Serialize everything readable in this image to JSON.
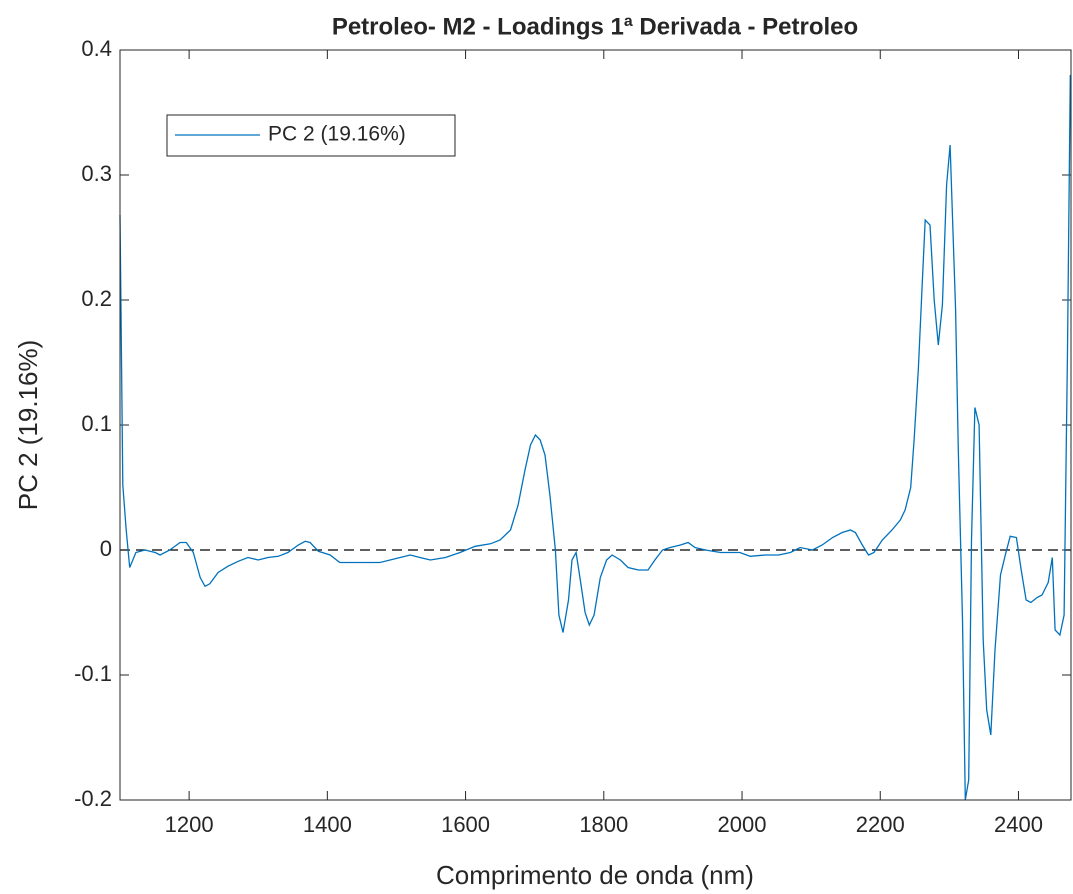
{
  "chart_data": {
    "type": "line",
    "title": "Petroleo- M2 - Loadings 1ª Derivada - Petroleo",
    "xlabel": "Comprimento de onda (nm)",
    "ylabel": "PC 2 (19.16%)",
    "x": [
      1100,
      1104,
      1109,
      1114,
      1123,
      1136,
      1151,
      1158,
      1172,
      1187,
      1196,
      1206,
      1216,
      1223,
      1230,
      1242,
      1256,
      1271,
      1285,
      1300,
      1314,
      1329,
      1343,
      1358,
      1368,
      1375,
      1387,
      1404,
      1418,
      1440,
      1462,
      1476,
      1498,
      1520,
      1534,
      1549,
      1571,
      1592,
      1614,
      1636,
      1650,
      1665,
      1676,
      1686,
      1694,
      1701,
      1708,
      1715,
      1722,
      1730,
      1735,
      1741,
      1749,
      1754,
      1760,
      1766,
      1773,
      1779,
      1786,
      1795,
      1804,
      1812,
      1824,
      1835,
      1850,
      1864,
      1874,
      1885,
      1896,
      1911,
      1922,
      1932,
      1947,
      1969,
      1997,
      2012,
      2034,
      2053,
      2070,
      2084,
      2102,
      2116,
      2131,
      2145,
      2157,
      2164,
      2174,
      2183,
      2191,
      2203,
      2217,
      2229,
      2236,
      2244,
      2249,
      2255,
      2261,
      2265,
      2272,
      2278,
      2284,
      2290,
      2296,
      2301,
      2309,
      2313,
      2319,
      2323,
      2328,
      2332,
      2337,
      2343,
      2349,
      2354,
      2360,
      2366,
      2374,
      2381,
      2388,
      2397,
      2404,
      2411,
      2418,
      2427,
      2434,
      2443,
      2449,
      2453,
      2460,
      2466,
      2471,
      2475
    ],
    "series": [
      {
        "name": "PC 2 (19.16%)",
        "color": "#0072bd",
        "values": [
          0.268,
          0.052,
          0.016,
          -0.014,
          -0.002,
          0,
          -0.002,
          -0.004,
          0,
          0.006,
          0.006,
          -0.002,
          -0.022,
          -0.029,
          -0.027,
          -0.018,
          -0.013,
          -0.009,
          -0.006,
          -0.008,
          -0.006,
          -0.005,
          -0.002,
          0.004,
          0.007,
          0.006,
          -0.001,
          -0.004,
          -0.01,
          -0.01,
          -0.01,
          -0.01,
          -0.007,
          -0.004,
          -0.006,
          -0.008,
          -0.006,
          -0.002,
          0.003,
          0.005,
          0.008,
          0.016,
          0.036,
          0.064,
          0.084,
          0.092,
          0.088,
          0.076,
          0.044,
          0,
          -0.052,
          -0.066,
          -0.04,
          -0.008,
          -0.002,
          -0.024,
          -0.05,
          -0.06,
          -0.052,
          -0.022,
          -0.008,
          -0.004,
          -0.008,
          -0.014,
          -0.016,
          -0.016,
          -0.008,
          0,
          0.002,
          0.004,
          0.006,
          0.002,
          0,
          -0.002,
          -0.002,
          -0.005,
          -0.004,
          -0.004,
          -0.002,
          0.002,
          0,
          0.004,
          0.01,
          0.014,
          0.016,
          0.014,
          0.004,
          -0.004,
          -0.002,
          0.008,
          0.016,
          0.024,
          0.032,
          0.05,
          0.088,
          0.144,
          0.216,
          0.264,
          0.26,
          0.2,
          0.164,
          0.196,
          0.292,
          0.324,
          0.192,
          0.08,
          -0.056,
          -0.2,
          -0.184,
          0.008,
          0.114,
          0.1,
          -0.072,
          -0.128,
          -0.148,
          -0.08,
          -0.02,
          -0.004,
          0.011,
          0.01,
          -0.016,
          -0.04,
          -0.042,
          -0.038,
          -0.036,
          -0.026,
          -0.006,
          -0.064,
          -0.068,
          -0.052,
          0.16,
          0.38
        ]
      }
    ],
    "xlim": [
      1100,
      2476
    ],
    "xticks": [
      1200,
      1400,
      1600,
      1800,
      2000,
      2200,
      2400
    ],
    "ylim": [
      -0.2,
      0.4
    ],
    "yticks": [
      -0.2,
      -0.1,
      0,
      0.1,
      0.2,
      0.3,
      0.4
    ],
    "hline": 0,
    "legend": "northwest"
  }
}
